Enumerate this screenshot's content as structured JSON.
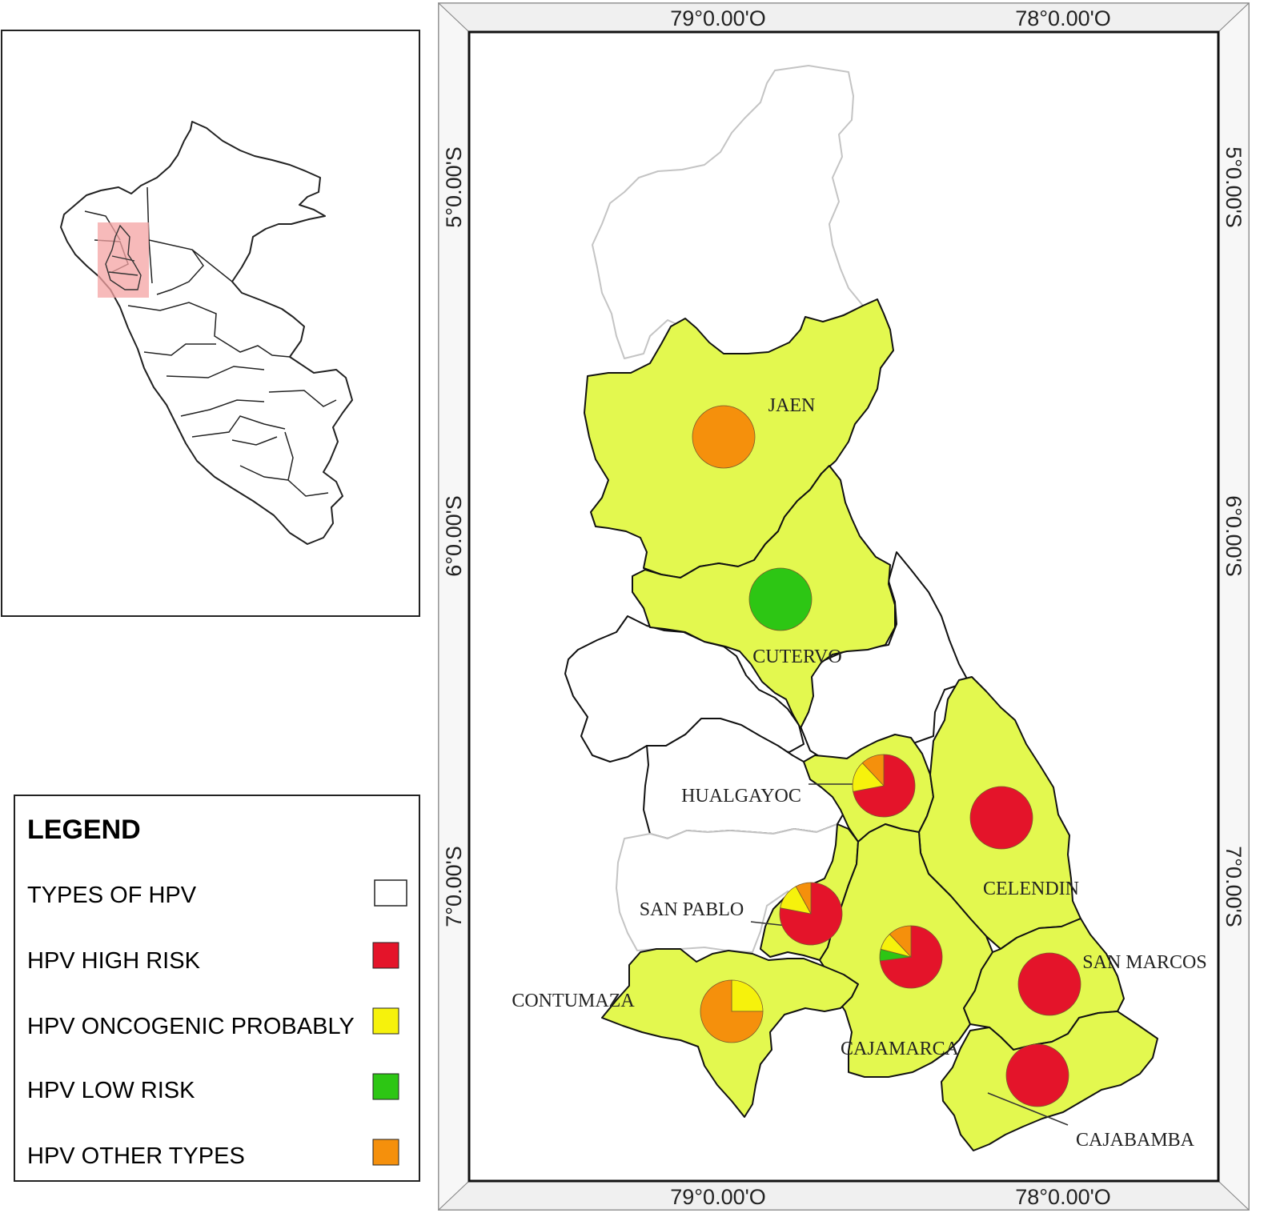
{
  "colors": {
    "region_fill": "#e3f84f",
    "unsampled_stroke": "#c4c4c4",
    "inset_highlight": "#f4a3a3",
    "high_risk": "#e4142a",
    "oncogenic_probably": "#f6f20c",
    "low_risk": "#2dc614",
    "other_types": "#f5900c"
  },
  "coordinates": {
    "lon_labels": [
      "79°0.00'O",
      "78°0.00'O"
    ],
    "lat_labels": [
      "5°0.00'S",
      "6°0.00'S",
      "7°0.00'S"
    ]
  },
  "legend": {
    "title": "LEGEND",
    "items": [
      {
        "label": "TYPES OF HPV",
        "swatch": "#ffffff"
      },
      {
        "label": "HPV HIGH RISK",
        "swatch": "#e4142a"
      },
      {
        "label": "HPV ONCOGENIC PROBABLY",
        "swatch": "#f6f20c"
      },
      {
        "label": "HPV LOW RISK",
        "swatch": "#2dc614"
      },
      {
        "label": "HPV OTHER TYPES",
        "swatch": "#f5900c"
      }
    ]
  },
  "provinces": [
    {
      "name": "JAEN",
      "shares": {
        "high_risk": 0,
        "oncogenic_probably": 0,
        "low_risk": 0,
        "other_types": 1
      }
    },
    {
      "name": "CUTERVO",
      "shares": {
        "high_risk": 0,
        "oncogenic_probably": 0,
        "low_risk": 1,
        "other_types": 0
      }
    },
    {
      "name": "HUALGAYOC",
      "shares": {
        "high_risk": 0.72,
        "oncogenic_probably": 0.16,
        "low_risk": 0,
        "other_types": 0.12
      }
    },
    {
      "name": "CELENDIN",
      "shares": {
        "high_risk": 1,
        "oncogenic_probably": 0,
        "low_risk": 0,
        "other_types": 0
      }
    },
    {
      "name": "SAN PABLO",
      "shares": {
        "high_risk": 0.78,
        "oncogenic_probably": 0.14,
        "low_risk": 0,
        "other_types": 0.08
      }
    },
    {
      "name": "CAJAMARCA",
      "shares": {
        "high_risk": 0.73,
        "oncogenic_probably": 0.09,
        "low_risk": 0.06,
        "other_types": 0.12
      }
    },
    {
      "name": "SAN MARCOS",
      "shares": {
        "high_risk": 1,
        "oncogenic_probably": 0,
        "low_risk": 0,
        "other_types": 0
      }
    },
    {
      "name": "CONTUMAZA",
      "shares": {
        "high_risk": 0,
        "oncogenic_probably": 0.25,
        "low_risk": 0,
        "other_types": 0.75
      }
    },
    {
      "name": "CAJABAMBA",
      "shares": {
        "high_risk": 1,
        "oncogenic_probably": 0,
        "low_risk": 0,
        "other_types": 0
      }
    }
  ]
}
